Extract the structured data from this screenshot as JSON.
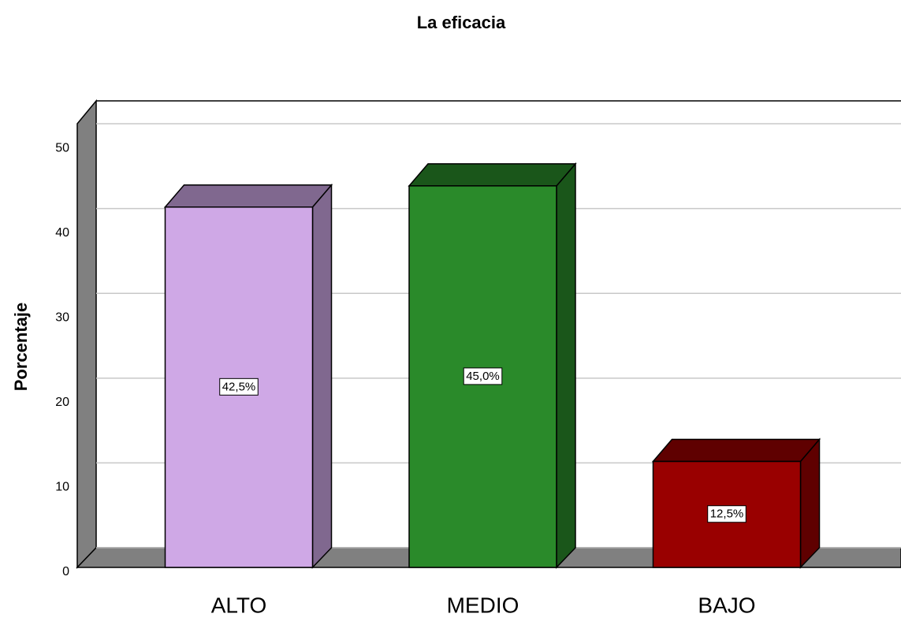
{
  "chart_data": {
    "type": "bar3d",
    "title": "La eficacia",
    "ylabel": "Porcentaje",
    "categories": [
      "ALTO",
      "MEDIO",
      "BAJO"
    ],
    "values": [
      42.5,
      45.0,
      12.5
    ],
    "value_labels": [
      "42,5%",
      "45,0%",
      "12,5%"
    ],
    "colors": [
      "#cfa8e6",
      "#2a8a2a",
      "#990000"
    ],
    "ylim": [
      0,
      52.7
    ],
    "yticks": [
      0,
      10,
      20,
      30,
      40,
      50
    ],
    "grid": true
  }
}
